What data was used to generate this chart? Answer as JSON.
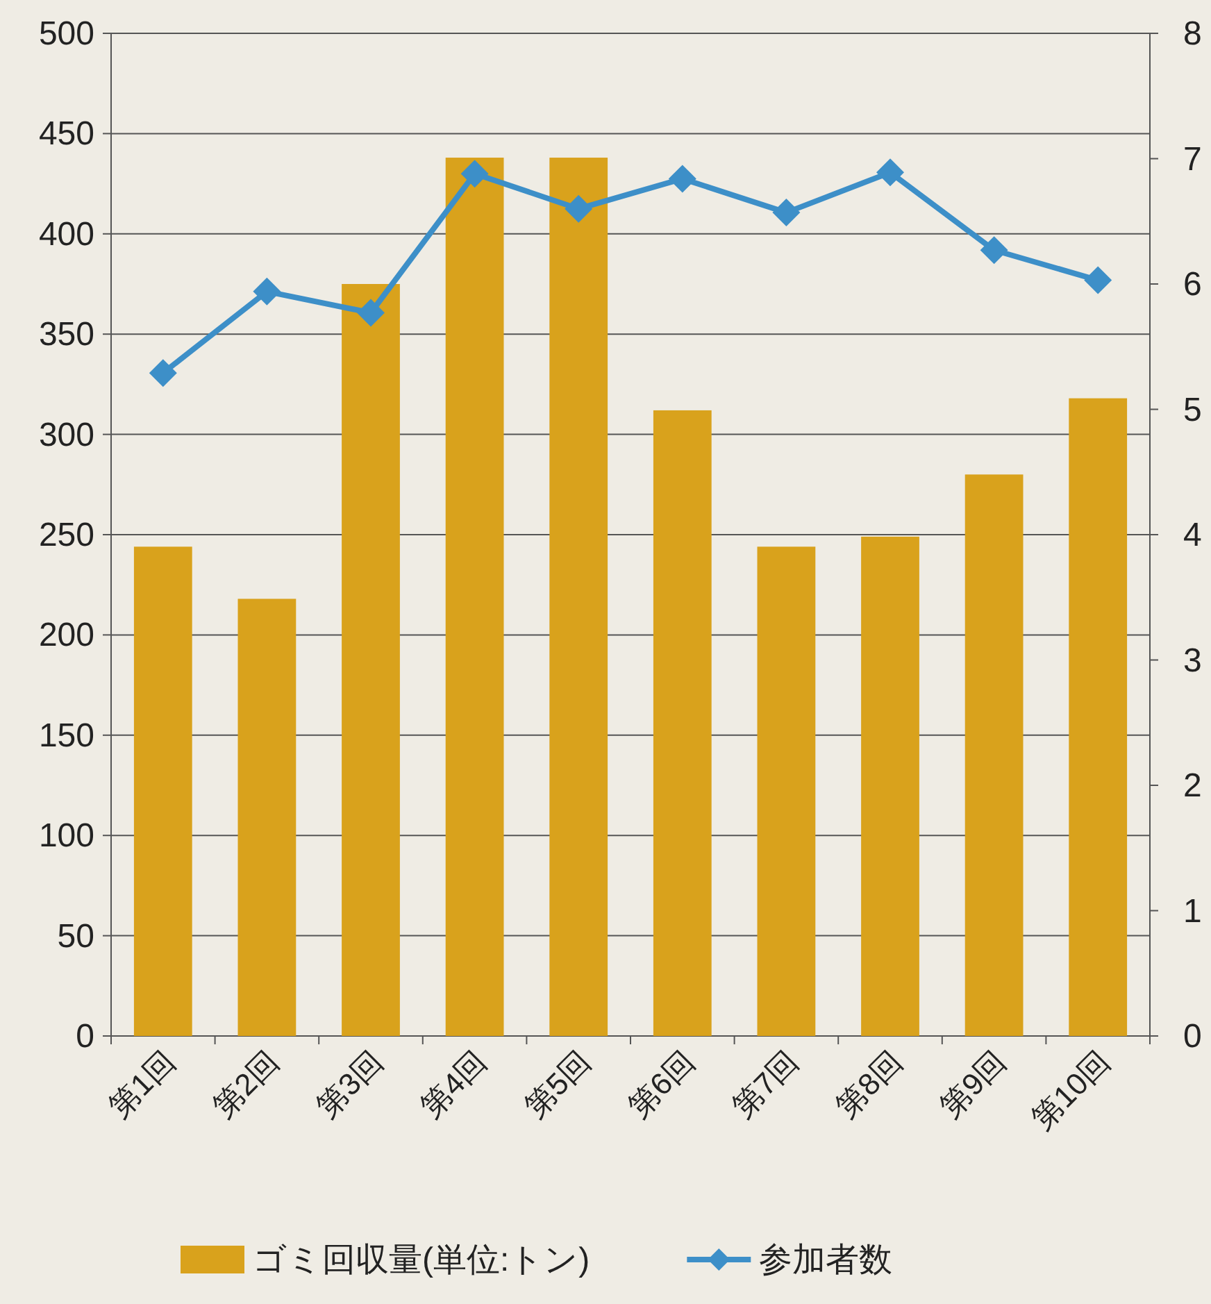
{
  "chart_data": {
    "type": "bar",
    "categories": [
      "第1回",
      "第2回",
      "第3回",
      "第4回",
      "第5回",
      "第6回",
      "第7回",
      "第8回",
      "第9回",
      "第10回"
    ],
    "series": [
      {
        "name": "ゴミ回収量(単位:トン)",
        "color": "#d9a21c",
        "values": [
          244,
          218,
          375,
          438,
          438,
          312,
          244,
          249,
          280,
          318
        ]
      },
      {
        "name": "参加者数",
        "type": "line",
        "axis": "y2",
        "color": "#3d8fc8",
        "marker": "diamond",
        "values": [
          5.29,
          5.94,
          5.77,
          6.88,
          6.6,
          6.84,
          6.57,
          6.89,
          6.27,
          6.03
        ]
      }
    ],
    "ylim": [
      0,
      500
    ],
    "yticks": [
      0,
      50,
      100,
      150,
      200,
      250,
      300,
      350,
      400,
      450,
      500
    ],
    "y2lim": [
      0,
      8
    ],
    "y2ticks": [
      0,
      1,
      2,
      3,
      4,
      5,
      6,
      7,
      8
    ],
    "grid": "y",
    "legend": "bottom"
  }
}
